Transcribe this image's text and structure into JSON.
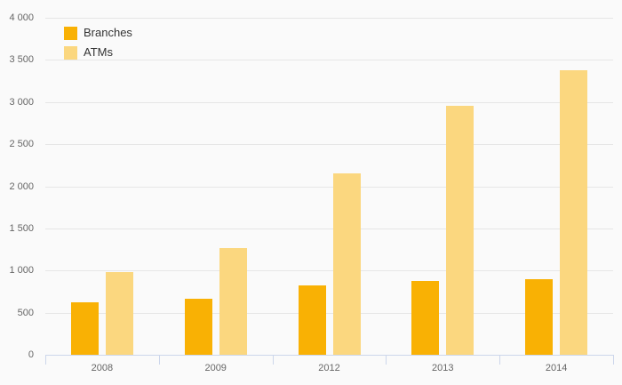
{
  "chart_data": {
    "type": "bar",
    "title": "",
    "xlabel": "",
    "ylabel": "",
    "categories": [
      "2008",
      "2009",
      "2012",
      "2013",
      "2014"
    ],
    "series": [
      {
        "name": "Branches",
        "color": "#f9b104",
        "values": [
          625,
          665,
          820,
          875,
          895
        ]
      },
      {
        "name": "ATMs",
        "color": "#fbd77f",
        "values": [
          985,
          1270,
          2155,
          2955,
          3380
        ]
      }
    ],
    "ylim": [
      0,
      4000
    ],
    "ytick_step": 500,
    "ytick_labels": [
      "0",
      "500",
      "1 000",
      "1 500",
      "2 000",
      "2 500",
      "3 000",
      "3 500",
      "4 000"
    ],
    "grid": true,
    "legend_position": "top-left"
  },
  "colors": {
    "background": "#fafafa",
    "gridline": "#e6e6e6",
    "axis_line": "#ccd6eb",
    "tick_label": "#666666",
    "legend_text": "#333333"
  }
}
